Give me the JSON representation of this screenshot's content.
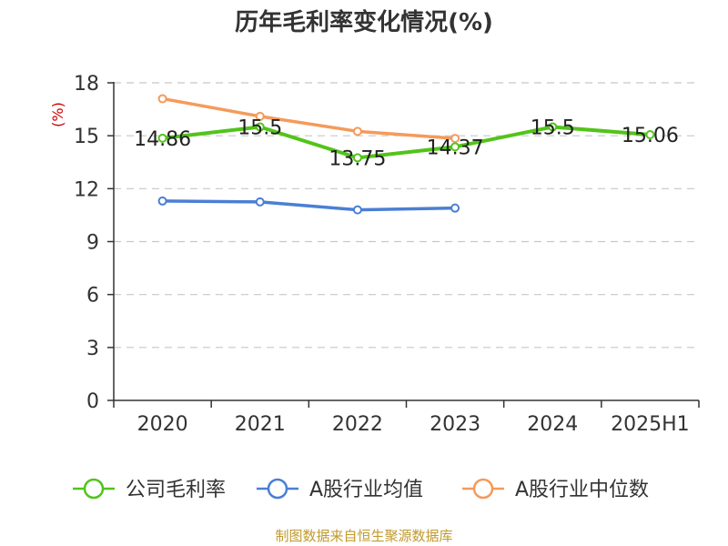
{
  "chart_data": {
    "type": "line",
    "title": "历年毛利率变化情况(%)",
    "ylabel": "(%)",
    "xlabel": "",
    "categories": [
      "2020",
      "2021",
      "2022",
      "2023",
      "2024",
      "2025H1"
    ],
    "ylim": [
      0,
      18
    ],
    "yticks": [
      0,
      3,
      6,
      9,
      12,
      15,
      18
    ],
    "grid": true,
    "legend_position": "bottom",
    "series": [
      {
        "name": "公司毛利率",
        "color": "#52c41a",
        "values": [
          14.86,
          15.5,
          13.75,
          14.37,
          15.5,
          15.06
        ],
        "labels": [
          "14.86",
          "15.5",
          "13.75",
          "14.37",
          "15.5",
          "15.06"
        ]
      },
      {
        "name": "A股行业均值",
        "color": "#4a7fd4",
        "values": [
          11.3,
          11.25,
          10.8,
          10.9,
          null,
          null
        ],
        "labels": []
      },
      {
        "name": "A股行业中位数",
        "color": "#f59a5b",
        "values": [
          17.1,
          16.1,
          15.25,
          14.85,
          null,
          null
        ],
        "labels": []
      }
    ]
  },
  "source_text": "制图数据来自恒生聚源数据库"
}
